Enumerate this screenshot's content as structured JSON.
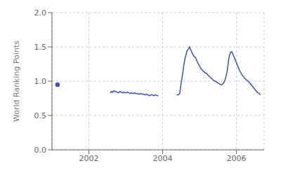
{
  "chart_data": {
    "type": "line",
    "ylabel": "World Ranking Points",
    "xlim": [
      2001.0,
      2006.75
    ],
    "xticks": [
      2002,
      2004,
      2006
    ],
    "ylim": [
      0,
      2
    ],
    "yticks": [
      {
        "value": 0,
        "label": "0.0"
      },
      0.5,
      {
        "value": 1,
        "label": "1.0"
      },
      1.5,
      {
        "value": 2,
        "label": "2.0"
      }
    ],
    "grid": true,
    "series": [
      {
        "color": "#3c52b0",
        "marker": "circle",
        "x": [
          2001.15
        ],
        "values": [
          0.95
        ]
      },
      {
        "color": "#3c52b0",
        "x": [
          2002.58,
          2002.62,
          2002.65,
          2002.68,
          2002.72,
          2002.76,
          2002.8,
          2002.84,
          2002.88,
          2002.92,
          2002.96,
          2003.0,
          2003.04,
          2003.08,
          2003.12,
          2003.16,
          2003.2,
          2003.24,
          2003.28,
          2003.32,
          2003.36,
          2003.4,
          2003.44,
          2003.48,
          2003.52,
          2003.56,
          2003.6,
          2003.64,
          2003.68,
          2003.72,
          2003.76,
          2003.8,
          2003.84,
          2003.88
        ],
        "values": [
          0.83,
          0.85,
          0.84,
          0.86,
          0.85,
          0.84,
          0.83,
          0.85,
          0.84,
          0.83,
          0.84,
          0.83,
          0.84,
          0.83,
          0.82,
          0.83,
          0.82,
          0.83,
          0.82,
          0.82,
          0.81,
          0.82,
          0.81,
          0.81,
          0.8,
          0.81,
          0.8,
          0.79,
          0.8,
          0.8,
          0.79,
          0.8,
          0.79,
          0.79
        ]
      },
      {
        "color": "#3c52b0",
        "x": [
          2004.38,
          2004.42,
          2004.46,
          2004.5,
          2004.54,
          2004.57,
          2004.6,
          2004.63,
          2004.66,
          2004.7,
          2004.73,
          2004.76,
          2004.79,
          2004.82,
          2004.85,
          2004.88,
          2004.91,
          2004.94,
          2004.97,
          2005.0,
          2005.03,
          2005.06,
          2005.09,
          2005.12,
          2005.15,
          2005.18,
          2005.21,
          2005.24,
          2005.27,
          2005.3,
          2005.33,
          2005.36,
          2005.39,
          2005.42,
          2005.45,
          2005.48,
          2005.51,
          2005.54,
          2005.57,
          2005.6,
          2005.63,
          2005.66,
          2005.69,
          2005.72,
          2005.75,
          2005.78,
          2005.81,
          2005.84,
          2005.87,
          2005.9,
          2005.93,
          2005.96,
          2005.99,
          2006.02,
          2006.05,
          2006.08,
          2006.11,
          2006.14,
          2006.17,
          2006.2,
          2006.23,
          2006.26,
          2006.29,
          2006.32,
          2006.35,
          2006.38,
          2006.41,
          2006.44,
          2006.47,
          2006.5,
          2006.53,
          2006.56,
          2006.59,
          2006.62,
          2006.65
        ],
        "values": [
          0.8,
          0.8,
          0.82,
          0.97,
          1.1,
          1.22,
          1.32,
          1.38,
          1.44,
          1.47,
          1.5,
          1.46,
          1.42,
          1.39,
          1.36,
          1.35,
          1.32,
          1.28,
          1.25,
          1.22,
          1.19,
          1.17,
          1.15,
          1.14,
          1.12,
          1.12,
          1.1,
          1.08,
          1.07,
          1.05,
          1.04,
          1.02,
          1.01,
          1.0,
          0.99,
          0.98,
          0.97,
          0.96,
          0.95,
          0.95,
          0.96,
          0.98,
          1.02,
          1.08,
          1.15,
          1.28,
          1.38,
          1.42,
          1.43,
          1.4,
          1.36,
          1.32,
          1.28,
          1.24,
          1.2,
          1.16,
          1.13,
          1.1,
          1.08,
          1.06,
          1.04,
          1.02,
          1.01,
          1.0,
          0.98,
          0.96,
          0.94,
          0.92,
          0.9,
          0.88,
          0.86,
          0.84,
          0.83,
          0.82,
          0.8
        ]
      }
    ]
  }
}
